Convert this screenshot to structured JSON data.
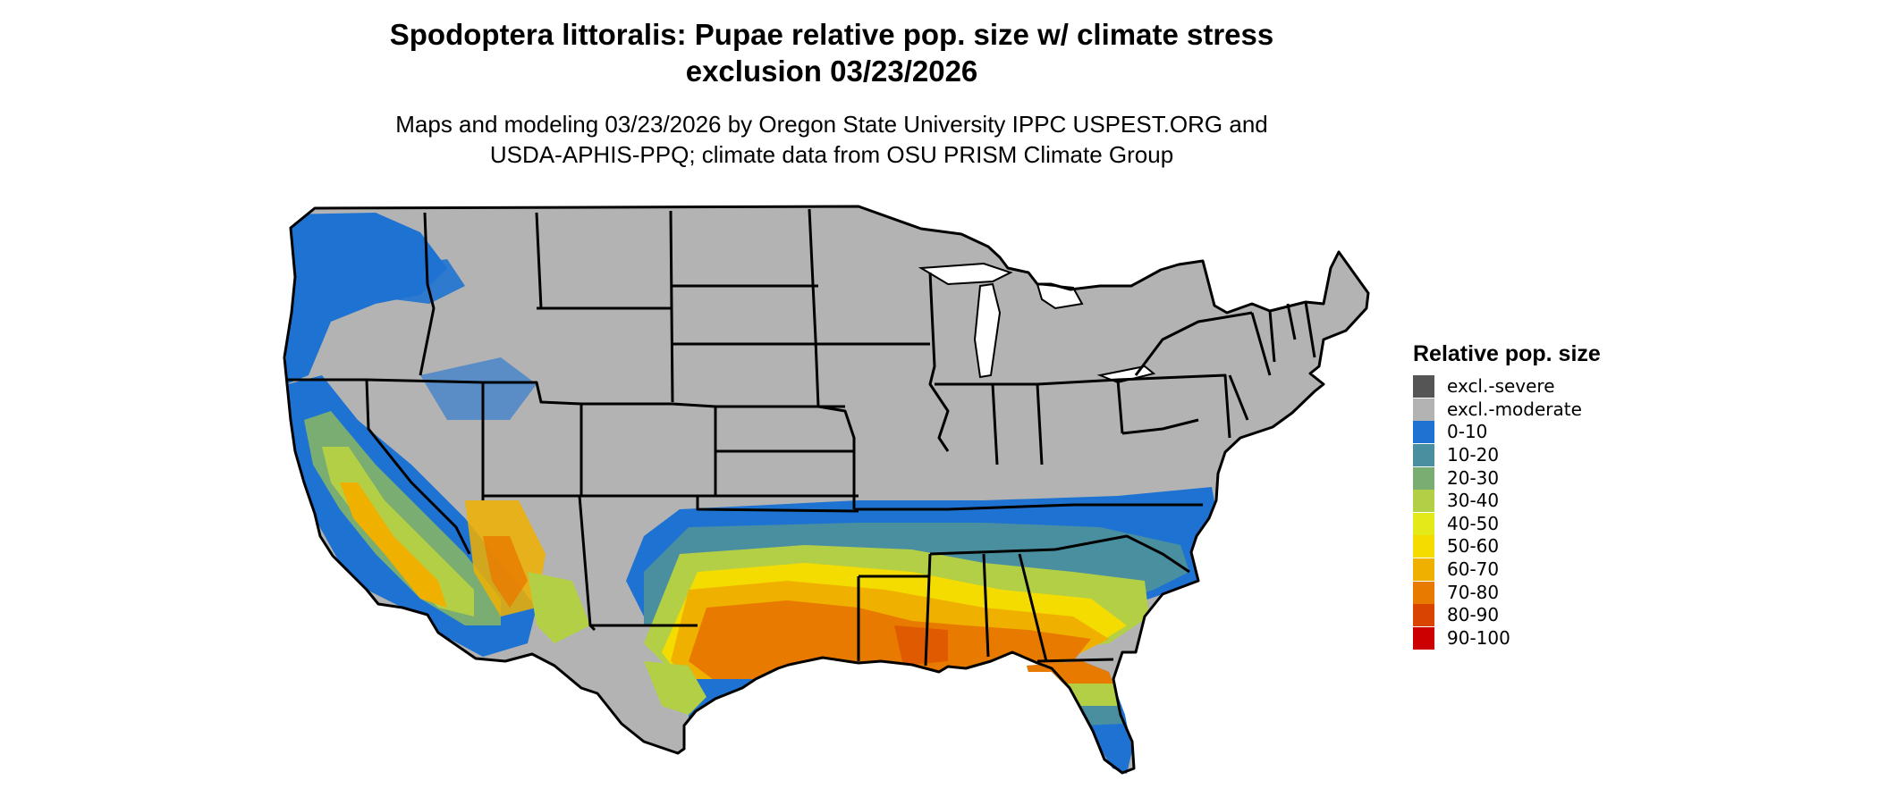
{
  "title_line1": "Spodoptera littoralis: Pupae relative pop. size w/ climate stress",
  "title_line2": "exclusion 03/23/2026",
  "subtitle_line1": "Maps and modeling 03/23/2026 by Oregon State University IPPC USPEST.ORG and",
  "subtitle_line2": "USDA-APHIS-PPQ; climate data from OSU PRISM Climate Group",
  "legend": {
    "title": "Relative pop. size",
    "items": [
      {
        "label": "excl.-severe",
        "color": "#555555"
      },
      {
        "label": "excl.-moderate",
        "color": "#b3b3b3"
      },
      {
        "label": "0-10",
        "color": "#1e73d2"
      },
      {
        "label": "10-20",
        "color": "#4a8fa0"
      },
      {
        "label": "20-30",
        "color": "#7aad72"
      },
      {
        "label": "30-40",
        "color": "#b3cf45"
      },
      {
        "label": "40-50",
        "color": "#e4ea1a"
      },
      {
        "label": "50-60",
        "color": "#f5dc00"
      },
      {
        "label": "60-70",
        "color": "#f0b000"
      },
      {
        "label": "70-80",
        "color": "#e87a00"
      },
      {
        "label": "80-90",
        "color": "#d94400"
      },
      {
        "label": "90-100",
        "color": "#cc0000"
      }
    ]
  }
}
